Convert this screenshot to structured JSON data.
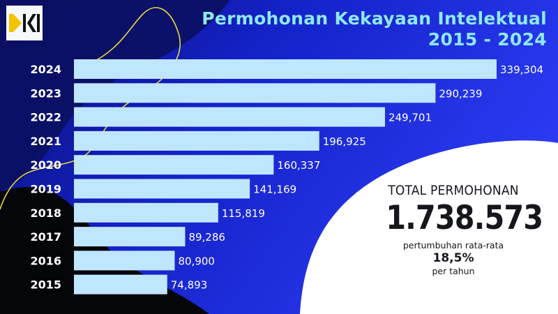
{
  "header": {
    "title_line1": "Permohonan Kekayaan Intelektual",
    "title_line2": "2015 - 2024"
  },
  "colors": {
    "bar_fill": "#bfe6ff",
    "title": "#8fe8f4",
    "text_light": "#ffffff",
    "text_dark": "#15171c",
    "logo_yellow": "#f2c400",
    "squiggle": "#e7d83c",
    "bg_blue": "#1d2fe0",
    "bg_black": "#05060a"
  },
  "chart_data": {
    "type": "bar",
    "orientation": "horizontal",
    "categories": [
      "2024",
      "2023",
      "2022",
      "2021",
      "2020",
      "2019",
      "2018",
      "2017",
      "2016",
      "2015"
    ],
    "values": [
      339304,
      290239,
      249701,
      196925,
      160337,
      141169,
      115819,
      89286,
      80900,
      74893
    ],
    "value_labels": [
      "339,304",
      "290,239",
      "249,701",
      "196,925",
      "160,337",
      "141,169",
      "115,819",
      "89,286",
      "80,900",
      "74,893"
    ]
  },
  "summary": {
    "total_label": "TOTAL PERMOHONAN",
    "total_value": "1.738.573",
    "growth_label": "pertumbuhan rata-rata",
    "growth_value": "18,5%",
    "per_year": "per tahun"
  }
}
